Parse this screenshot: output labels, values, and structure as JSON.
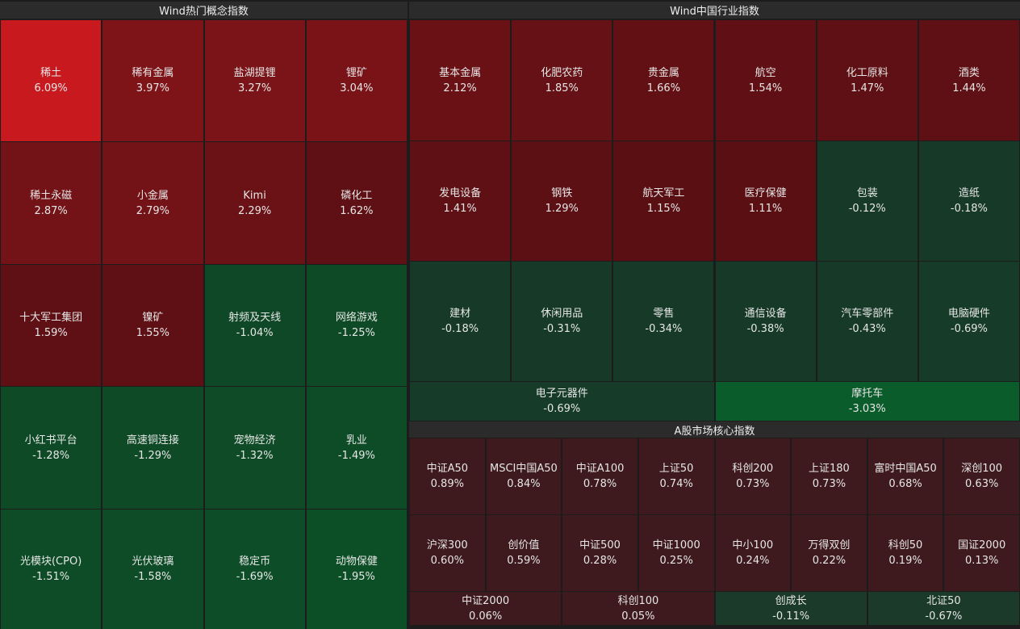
{
  "panels": [
    {
      "title": "Wind热门概念指数",
      "rows": [
        [
          {
            "label": "稀土",
            "change": "6.09%",
            "color": "#c8191f"
          },
          {
            "label": "稀有金属",
            "change": "3.97%",
            "color": "#7e1418"
          },
          {
            "label": "盐湖提锂",
            "change": "3.27%",
            "color": "#7b1418"
          },
          {
            "label": "锂矿",
            "change": "3.04%",
            "color": "#7a1317"
          }
        ],
        [
          {
            "label": "稀土永磁",
            "change": "2.87%",
            "color": "#741317"
          },
          {
            "label": "小金属",
            "change": "2.79%",
            "color": "#731317"
          },
          {
            "label": "Kimi",
            "change": "2.29%",
            "color": "#6b1216"
          },
          {
            "label": "磷化工",
            "change": "1.62%",
            "color": "#5f1014"
          }
        ],
        [
          {
            "label": "十大军工集团",
            "change": "1.59%",
            "color": "#5e1014"
          },
          {
            "label": "镍矿",
            "change": "1.55%",
            "color": "#5e1014"
          },
          {
            "label": "射频及天线",
            "change": "-1.04%",
            "color": "#0f4826"
          },
          {
            "label": "网络游戏",
            "change": "-1.25%",
            "color": "#0e4a26"
          }
        ],
        [
          {
            "label": "小红书平台",
            "change": "-1.28%",
            "color": "#0e4a26"
          },
          {
            "label": "高速铜连接",
            "change": "-1.29%",
            "color": "#0e4a26"
          },
          {
            "label": "宠物经济",
            "change": "-1.32%",
            "color": "#0e4b26"
          },
          {
            "label": "乳业",
            "change": "-1.49%",
            "color": "#0d4c26"
          }
        ],
        [
          {
            "label": "光模块(CPO)",
            "change": "-1.51%",
            "color": "#0d4c26"
          },
          {
            "label": "光伏玻璃",
            "change": "-1.58%",
            "color": "#0d4c26"
          },
          {
            "label": "稳定币",
            "change": "-1.69%",
            "color": "#0d4d27"
          },
          {
            "label": "动物保健",
            "change": "-1.95%",
            "color": "#0c4f27"
          }
        ]
      ]
    },
    {
      "title": "Wind中国行业指数",
      "rows": [
        [
          {
            "label": "基本金属",
            "change": "2.12%",
            "color": "#6a1115"
          },
          {
            "label": "化肥农药",
            "change": "1.85%",
            "color": "#651115"
          },
          {
            "label": "贵金属",
            "change": "1.66%",
            "color": "#621014"
          },
          {
            "label": "航空",
            "change": "1.54%",
            "color": "#601014"
          },
          {
            "label": "化工原料",
            "change": "1.47%",
            "color": "#5f1014"
          },
          {
            "label": "酒类",
            "change": "1.44%",
            "color": "#5e1014"
          }
        ],
        [
          {
            "label": "发电设备",
            "change": "1.41%",
            "color": "#5e1014"
          },
          {
            "label": "钢铁",
            "change": "1.29%",
            "color": "#5c1014"
          },
          {
            "label": "航天军工",
            "change": "1.15%",
            "color": "#5a0f13"
          },
          {
            "label": "医疗保健",
            "change": "1.11%",
            "color": "#5a0f13"
          },
          {
            "label": "包装",
            "change": "-0.12%",
            "color": "#173a28"
          },
          {
            "label": "造纸",
            "change": "-0.18%",
            "color": "#173a28"
          }
        ],
        [
          {
            "label": "建材",
            "change": "-0.18%",
            "color": "#173a28"
          },
          {
            "label": "休闲用品",
            "change": "-0.31%",
            "color": "#173a28"
          },
          {
            "label": "零售",
            "change": "-0.34%",
            "color": "#173a28"
          },
          {
            "label": "通信设备",
            "change": "-0.38%",
            "color": "#173a28"
          },
          {
            "label": "汽车零部件",
            "change": "-0.43%",
            "color": "#173a28"
          },
          {
            "label": "电脑硬件",
            "change": "-0.69%",
            "color": "#163b28"
          }
        ],
        [
          {
            "label": "电子元器件",
            "change": "-0.69%",
            "color": "#163b28"
          },
          {
            "label": "摩托车",
            "change": "-3.03%",
            "color": "#0b5c2b"
          }
        ]
      ]
    },
    {
      "title": "A股市场核心指数",
      "rows": [
        [
          {
            "label": "中证A50",
            "change": "0.89%",
            "color": "#3e1a1e"
          },
          {
            "label": "MSCI中国A50",
            "change": "0.84%",
            "color": "#3e1a1e"
          },
          {
            "label": "中证A100",
            "change": "0.78%",
            "color": "#3e1a1e"
          },
          {
            "label": "上证50",
            "change": "0.74%",
            "color": "#3e1a1e"
          },
          {
            "label": "科创200",
            "change": "0.73%",
            "color": "#3e1a1e"
          },
          {
            "label": "上证180",
            "change": "0.73%",
            "color": "#3e1a1e"
          },
          {
            "label": "富时中国A50",
            "change": "0.68%",
            "color": "#3e1a1e"
          },
          {
            "label": "深创100",
            "change": "0.63%",
            "color": "#3e1a1e"
          }
        ],
        [
          {
            "label": "沪深300",
            "change": "0.60%",
            "color": "#3e1a1e"
          },
          {
            "label": "创价值",
            "change": "0.59%",
            "color": "#3e1a1e"
          },
          {
            "label": "中证500",
            "change": "0.28%",
            "color": "#3e1a1e"
          },
          {
            "label": "中证1000",
            "change": "0.25%",
            "color": "#3e1a1e"
          },
          {
            "label": "中小100",
            "change": "0.24%",
            "color": "#3e1a1e"
          },
          {
            "label": "万得双创",
            "change": "0.22%",
            "color": "#3e1a1e"
          },
          {
            "label": "科创50",
            "change": "0.19%",
            "color": "#3e1a1e"
          },
          {
            "label": "国证2000",
            "change": "0.13%",
            "color": "#3e1a1e"
          }
        ],
        [
          {
            "label": "中证2000",
            "change": "0.06%",
            "color": "#3e1a1e"
          },
          {
            "label": "科创100",
            "change": "0.05%",
            "color": "#3e1a1e"
          },
          {
            "label": "创成长",
            "change": "-0.11%",
            "color": "#1b3a2a"
          },
          {
            "label": "北证50",
            "change": "-0.67%",
            "color": "#1b3a2a"
          }
        ]
      ]
    }
  ]
}
